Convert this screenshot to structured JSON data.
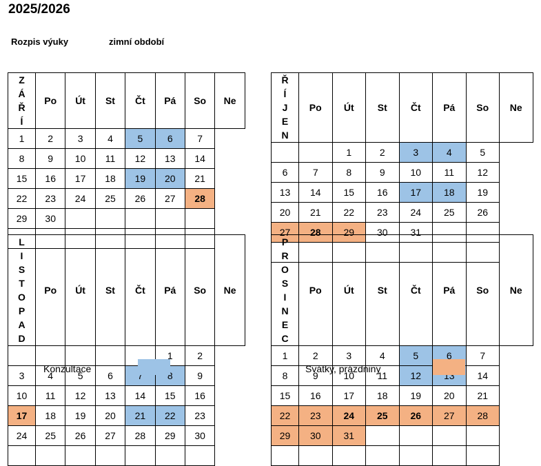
{
  "title": "2025/2026",
  "subtitle_left": "Rozpis výuky",
  "subtitle_right": "zimní období",
  "colors": {
    "konzultace": "#9dc3e6",
    "svatky": "#f4b183"
  },
  "weekdays_left": [
    "Po",
    "Út",
    "St",
    "Čt",
    "Pá",
    "So",
    "Ne"
  ],
  "weekdays_right": [
    "Po",
    "Út",
    "St",
    "Čt",
    "Pá",
    "So",
    "Ne"
  ],
  "months": {
    "zari": "ZÁŘÍ",
    "rijen": "ŘÍJEN",
    "listopad": "LISTOPAD",
    "prosinec": "PROSINEC"
  },
  "legend": {
    "konzultace": "Konzultace",
    "svatky": "Svátky, prázdniny"
  },
  "calendars": {
    "zari": [
      [
        {
          "d": "1"
        },
        {
          "d": "2"
        },
        {
          "d": "3"
        },
        {
          "d": "4"
        },
        {
          "d": "5",
          "t": "k"
        },
        {
          "d": "6",
          "t": "k"
        },
        {
          "d": "7"
        }
      ],
      [
        {
          "d": "8"
        },
        {
          "d": "9"
        },
        {
          "d": "10"
        },
        {
          "d": "11"
        },
        {
          "d": "12"
        },
        {
          "d": "13"
        },
        {
          "d": "14"
        }
      ],
      [
        {
          "d": "15"
        },
        {
          "d": "16"
        },
        {
          "d": "17"
        },
        {
          "d": "18"
        },
        {
          "d": "19",
          "t": "k"
        },
        {
          "d": "20",
          "t": "k"
        },
        {
          "d": "21"
        }
      ],
      [
        {
          "d": "22"
        },
        {
          "d": "23"
        },
        {
          "d": "24"
        },
        {
          "d": "25"
        },
        {
          "d": "26"
        },
        {
          "d": "27"
        },
        {
          "d": "28",
          "t": "s",
          "b": true
        }
      ],
      [
        {
          "d": "29"
        },
        {
          "d": "30"
        },
        {
          "d": ""
        },
        {
          "d": ""
        },
        {
          "d": ""
        },
        {
          "d": ""
        },
        {
          "d": ""
        }
      ],
      [
        {
          "d": ""
        },
        {
          "d": ""
        },
        {
          "d": ""
        },
        {
          "d": ""
        },
        {
          "d": ""
        },
        {
          "d": ""
        },
        {
          "d": ""
        }
      ]
    ],
    "rijen": [
      [
        {
          "d": ""
        },
        {
          "d": ""
        },
        {
          "d": "1"
        },
        {
          "d": "2"
        },
        {
          "d": "3",
          "t": "k"
        },
        {
          "d": "4",
          "t": "k"
        },
        {
          "d": "5"
        }
      ],
      [
        {
          "d": "6"
        },
        {
          "d": "7"
        },
        {
          "d": "8"
        },
        {
          "d": "9"
        },
        {
          "d": "10"
        },
        {
          "d": "11"
        },
        {
          "d": "12"
        }
      ],
      [
        {
          "d": "13"
        },
        {
          "d": "14"
        },
        {
          "d": "15"
        },
        {
          "d": "16"
        },
        {
          "d": "17",
          "t": "k"
        },
        {
          "d": "18",
          "t": "k"
        },
        {
          "d": "19"
        }
      ],
      [
        {
          "d": "20"
        },
        {
          "d": "21"
        },
        {
          "d": "22"
        },
        {
          "d": "23"
        },
        {
          "d": "24"
        },
        {
          "d": "25"
        },
        {
          "d": "26"
        }
      ],
      [
        {
          "d": "27",
          "t": "s"
        },
        {
          "d": "28",
          "t": "s",
          "b": true
        },
        {
          "d": "29",
          "t": "s"
        },
        {
          "d": "30"
        },
        {
          "d": "31"
        },
        {
          "d": ""
        },
        {
          "d": ""
        }
      ],
      [
        {
          "d": ""
        },
        {
          "d": ""
        },
        {
          "d": ""
        },
        {
          "d": ""
        },
        {
          "d": ""
        },
        {
          "d": ""
        },
        {
          "d": ""
        }
      ]
    ],
    "listopad": [
      [
        {
          "d": ""
        },
        {
          "d": ""
        },
        {
          "d": ""
        },
        {
          "d": ""
        },
        {
          "d": ""
        },
        {
          "d": "1"
        },
        {
          "d": "2"
        }
      ],
      [
        {
          "d": "3"
        },
        {
          "d": "4"
        },
        {
          "d": "5"
        },
        {
          "d": "6"
        },
        {
          "d": "7",
          "t": "k"
        },
        {
          "d": "8",
          "t": "k"
        },
        {
          "d": "9"
        }
      ],
      [
        {
          "d": "10"
        },
        {
          "d": "11"
        },
        {
          "d": "12"
        },
        {
          "d": "13"
        },
        {
          "d": "14"
        },
        {
          "d": "15"
        },
        {
          "d": "16"
        }
      ],
      [
        {
          "d": "17",
          "t": "s",
          "b": true
        },
        {
          "d": "18"
        },
        {
          "d": "19"
        },
        {
          "d": "20"
        },
        {
          "d": "21",
          "t": "k"
        },
        {
          "d": "22",
          "t": "k"
        },
        {
          "d": "23"
        }
      ],
      [
        {
          "d": "24"
        },
        {
          "d": "25"
        },
        {
          "d": "26"
        },
        {
          "d": "27"
        },
        {
          "d": "28"
        },
        {
          "d": "29"
        },
        {
          "d": "30"
        }
      ],
      [
        {
          "d": ""
        },
        {
          "d": ""
        },
        {
          "d": ""
        },
        {
          "d": ""
        },
        {
          "d": ""
        },
        {
          "d": ""
        },
        {
          "d": ""
        }
      ]
    ],
    "prosinec": [
      [
        {
          "d": "1"
        },
        {
          "d": "2"
        },
        {
          "d": "3"
        },
        {
          "d": "4"
        },
        {
          "d": "5",
          "t": "k"
        },
        {
          "d": "6",
          "t": "k"
        },
        {
          "d": "7"
        }
      ],
      [
        {
          "d": "8"
        },
        {
          "d": "9"
        },
        {
          "d": "10"
        },
        {
          "d": "11"
        },
        {
          "d": "12",
          "t": "k"
        },
        {
          "d": "13",
          "t": "k"
        },
        {
          "d": "14"
        }
      ],
      [
        {
          "d": "15"
        },
        {
          "d": "16"
        },
        {
          "d": "17"
        },
        {
          "d": "18"
        },
        {
          "d": "19"
        },
        {
          "d": "20"
        },
        {
          "d": "21"
        }
      ],
      [
        {
          "d": "22",
          "t": "s"
        },
        {
          "d": "23",
          "t": "s"
        },
        {
          "d": "24",
          "t": "s",
          "b": true
        },
        {
          "d": "25",
          "t": "s",
          "b": true
        },
        {
          "d": "26",
          "t": "s",
          "b": true
        },
        {
          "d": "27",
          "t": "s"
        },
        {
          "d": "28",
          "t": "s"
        }
      ],
      [
        {
          "d": "29",
          "t": "s"
        },
        {
          "d": "30",
          "t": "s"
        },
        {
          "d": "31",
          "t": "s"
        },
        {
          "d": ""
        },
        {
          "d": ""
        },
        {
          "d": ""
        },
        {
          "d": ""
        }
      ],
      [
        {
          "d": ""
        },
        {
          "d": ""
        },
        {
          "d": ""
        },
        {
          "d": ""
        },
        {
          "d": ""
        },
        {
          "d": ""
        },
        {
          "d": ""
        }
      ]
    ]
  }
}
